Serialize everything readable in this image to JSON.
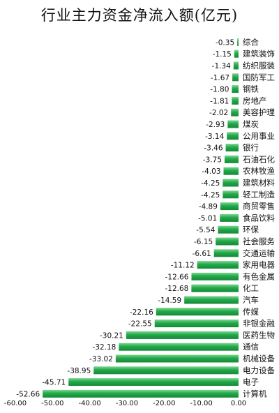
{
  "chart_data": {
    "type": "bar",
    "orientation": "horizontal",
    "title": "行业主力资金净流入额(亿元)",
    "xlabel": "",
    "ylabel": "",
    "xlim": [
      -60,
      0
    ],
    "x_ticks": [
      "-60.00",
      "-50.00",
      "-40.00",
      "-30.00",
      "-20.00",
      "-10.00",
      "0.00"
    ],
    "grid": false,
    "legend": "none",
    "bar_color": "#22a84a",
    "categories": [
      "综合",
      "建筑装饰",
      "纺织服装",
      "国防军工",
      "钢铁",
      "房地产",
      "美容护理",
      "煤炭",
      "公用事业",
      "银行",
      "石油石化",
      "农林牧渔",
      "建筑材料",
      "轻工制造",
      "商贸零售",
      "食品饮料",
      "环保",
      "社会服务",
      "交通运输",
      "家用电器",
      "有色金属",
      "化工",
      "汽车",
      "传媒",
      "非银金融",
      "医药生物",
      "通信",
      "机械设备",
      "电力设备",
      "电子",
      "计算机"
    ],
    "values": [
      -0.35,
      -1.15,
      -1.34,
      -1.67,
      -1.8,
      -1.81,
      -2.02,
      -2.93,
      -3.14,
      -3.46,
      -3.75,
      -4.03,
      -4.25,
      -4.25,
      -4.89,
      -5.01,
      -5.54,
      -6.15,
      -6.61,
      -11.12,
      -12.66,
      -12.68,
      -14.59,
      -22.16,
      -22.55,
      -30.21,
      -32.18,
      -33.02,
      -38.95,
      -45.71,
      -52.66
    ],
    "value_labels": [
      "-0.35",
      "-1.15",
      "-1.34",
      "-1.67",
      "-1.80",
      "-1.81",
      "-2.02",
      "-2.93",
      "-3.14",
      "-3.46",
      "-3.75",
      "-4.03",
      "-4.25",
      "-4.25",
      "-4.89",
      "-5.01",
      "-5.54",
      "-6.15",
      "-6.61",
      "-11.12",
      "-12.66",
      "-12.68",
      "-14.59",
      "-22.16",
      "-22.55",
      "-30.21",
      "-32.18",
      "-33.02",
      "-38.95",
      "-45.71",
      "-52.66"
    ]
  }
}
